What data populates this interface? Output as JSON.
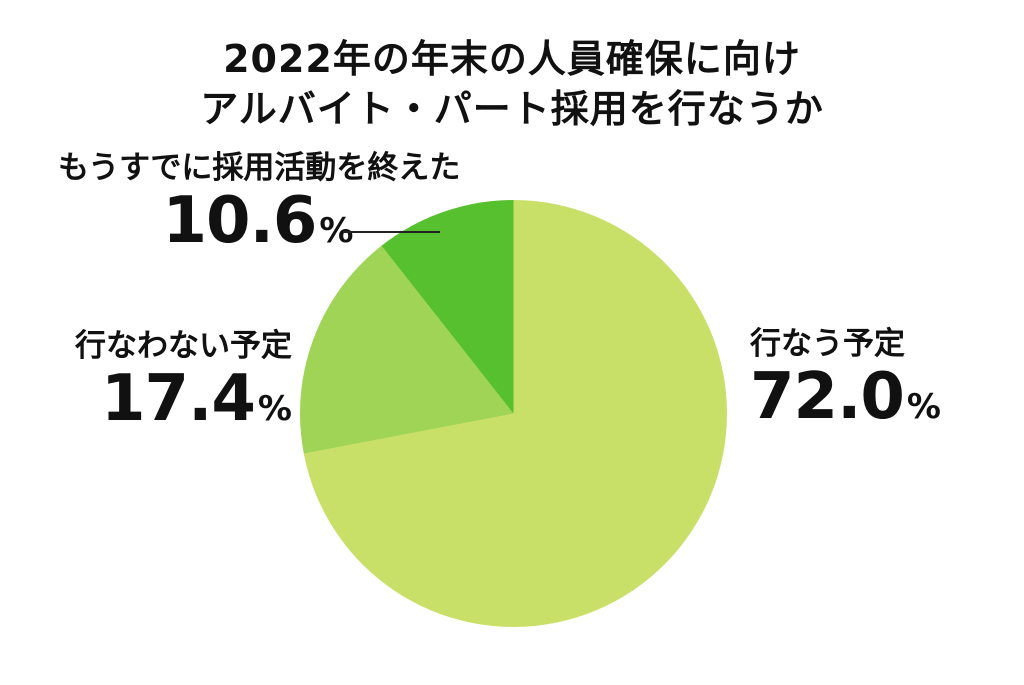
{
  "title": {
    "line1": "2022年の年末の人員確保に向け",
    "line2": "アルバイト・パート採用を行なうか"
  },
  "chart_data": {
    "type": "pie",
    "title": "2022年の年末の人員確保に向け アルバイト・パート採用を行なうか",
    "start_angle_deg": 0,
    "direction": "clockwise",
    "legend_position": "labels-around-pie",
    "slices": [
      {
        "label": "行なう予定",
        "value": 72.0,
        "display_value": "72.0",
        "unit": "%",
        "color": "#c8e067"
      },
      {
        "label": "行なわない予定",
        "value": 17.4,
        "display_value": "17.4",
        "unit": "%",
        "color": "#9fd456"
      },
      {
        "label": "もうすでに採用活動を終えた",
        "value": 10.6,
        "display_value": "10.6",
        "unit": "%",
        "color": "#57c02f"
      }
    ]
  },
  "colors": {
    "background": "#ffffff",
    "text": "#111111",
    "leader_line": "#222222"
  }
}
